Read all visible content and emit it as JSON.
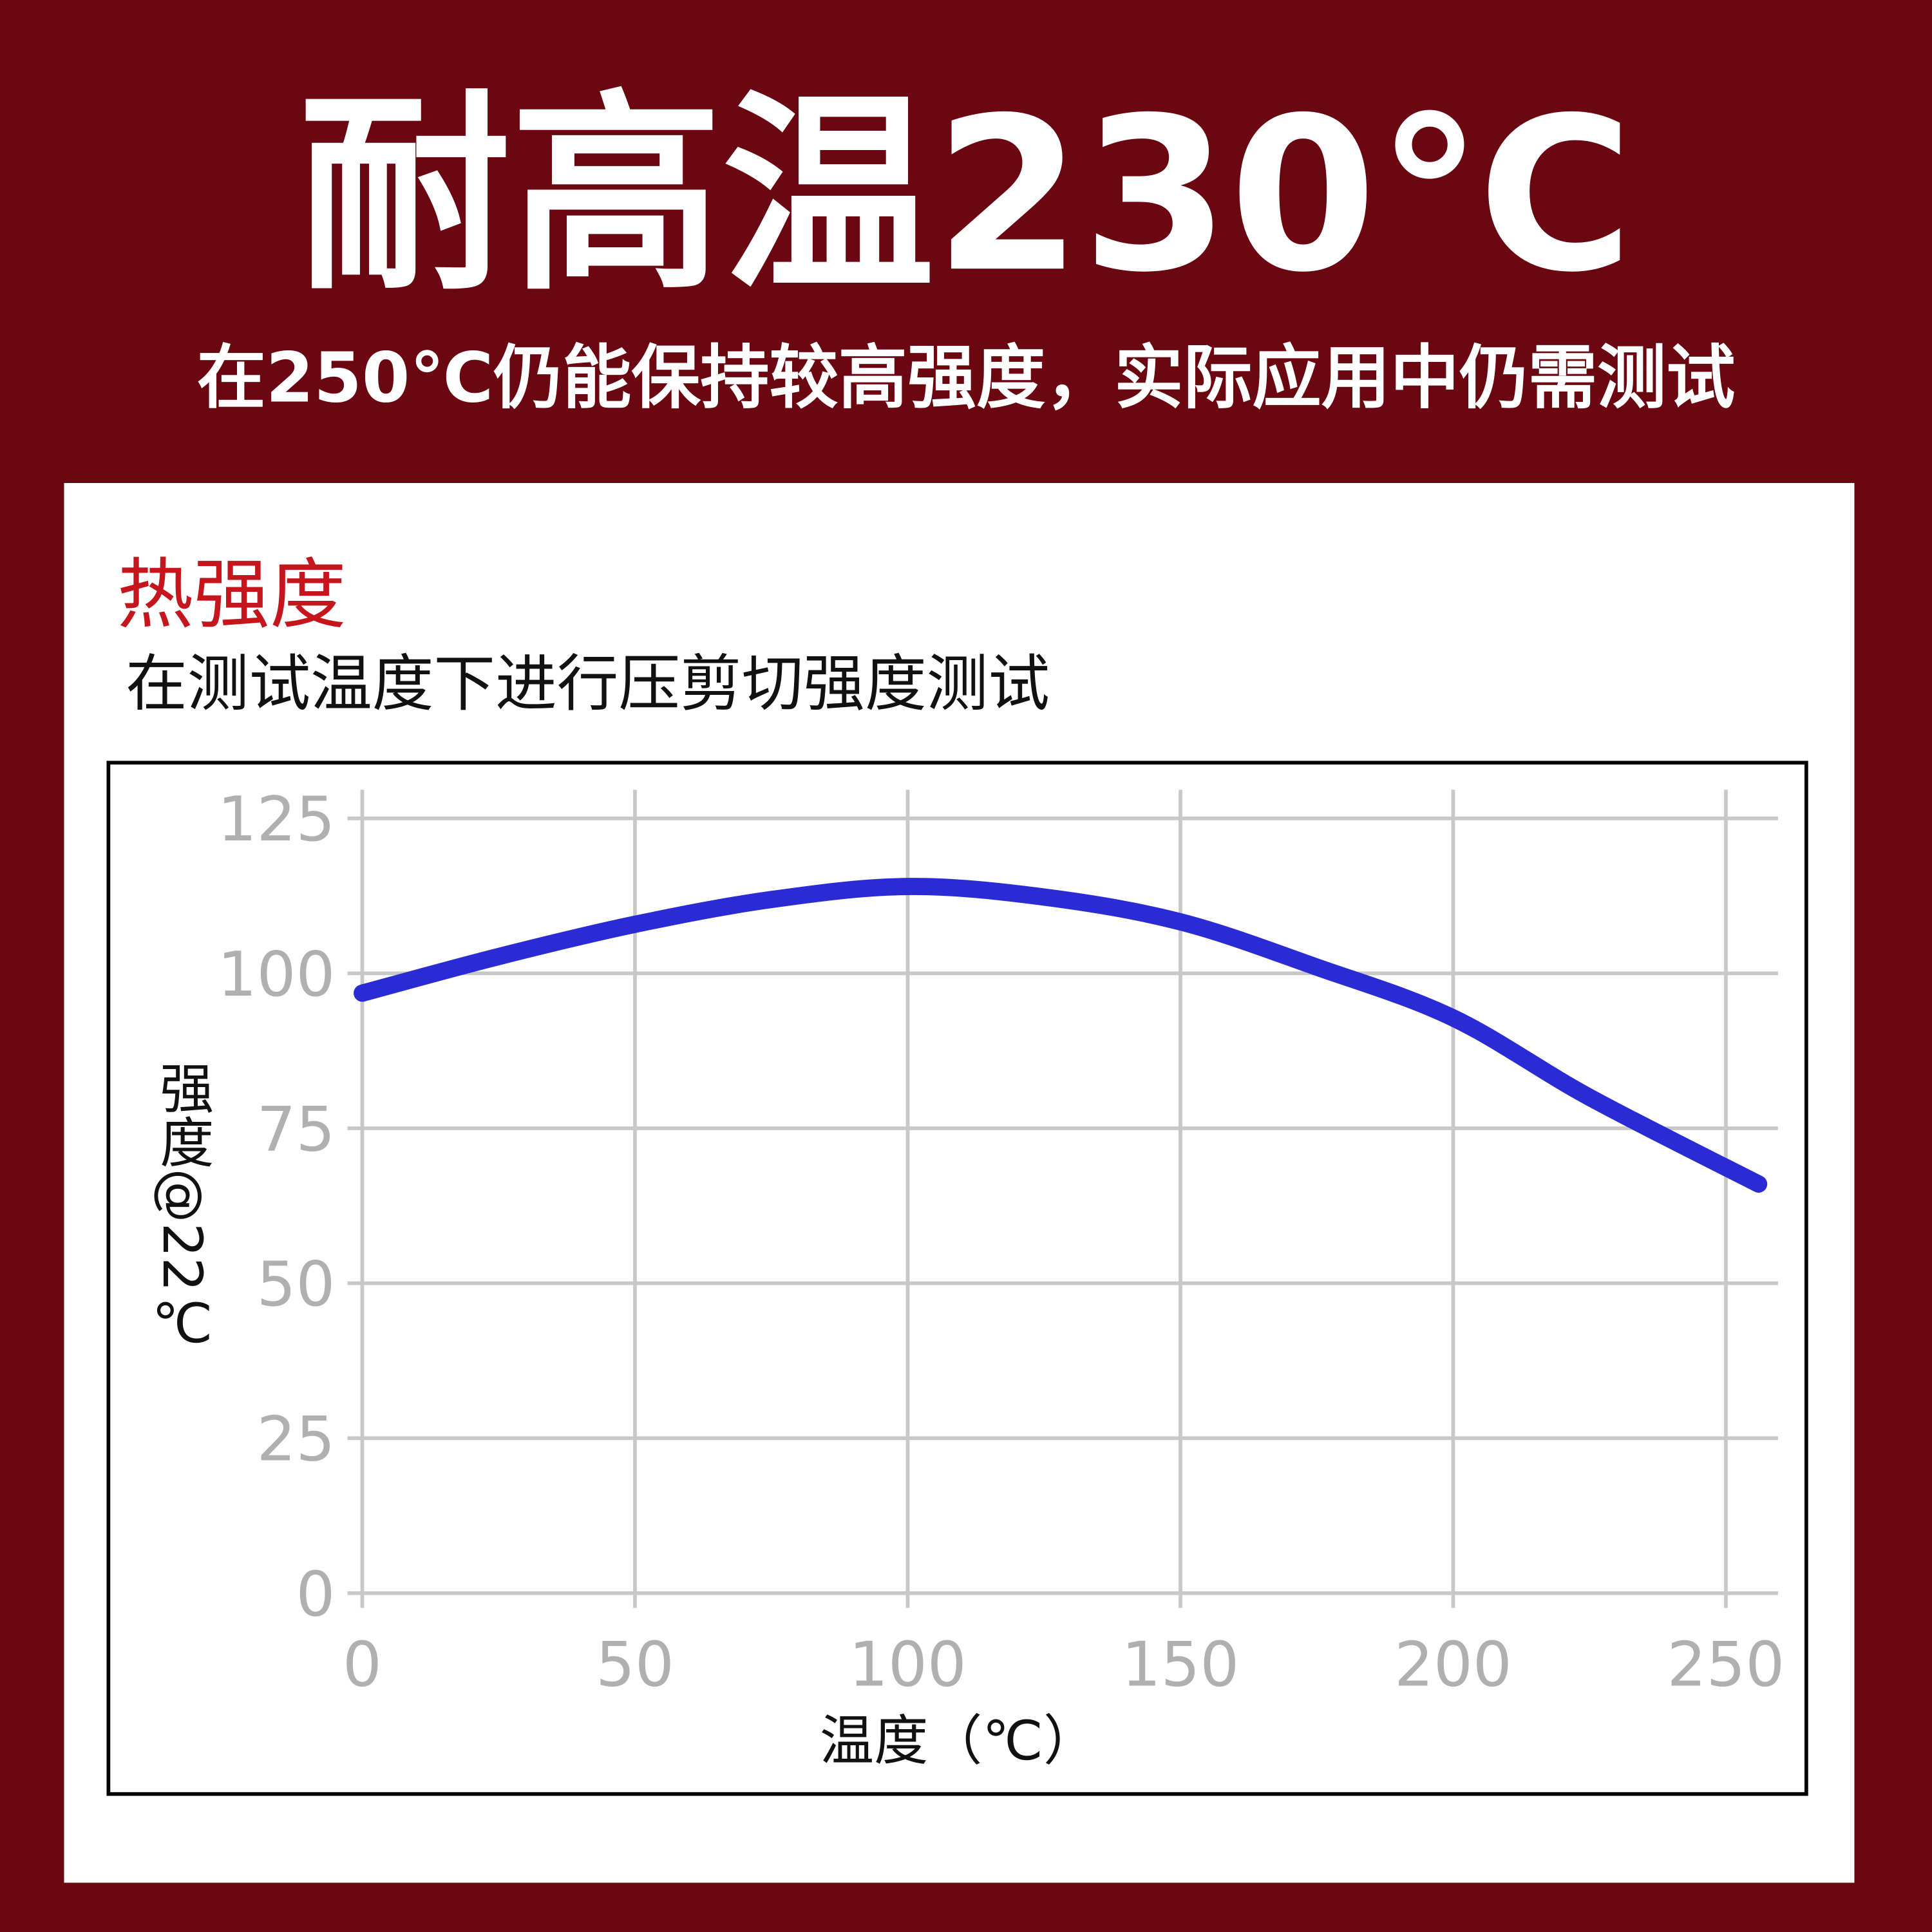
{
  "header": {
    "title": "耐高温230℃",
    "subtitle": "在250℃仍能保持较高强度，实际应用中仍需测试"
  },
  "chart_data": {
    "type": "line",
    "title": "热强度",
    "subtitle": "在测试温度下进行压剪切强度测试",
    "x_label": "温度（℃）",
    "y_label": "强度@22℃",
    "x": [
      0,
      25,
      50,
      75,
      100,
      125,
      150,
      175,
      200,
      225,
      256
    ],
    "series": [
      {
        "color": "#2b2bd6",
        "values": [
          96.8,
          102.7,
          107.9,
          111.9,
          114,
          112.3,
          108.3,
          101,
          92.8,
          80,
          66
        ]
      }
    ],
    "xlim": [
      0,
      260
    ],
    "ylim": [
      0,
      130
    ],
    "xticks": [
      0,
      50,
      100,
      150,
      200,
      250
    ],
    "yticks": [
      0,
      25,
      50,
      75,
      100,
      125
    ],
    "grid": true
  }
}
